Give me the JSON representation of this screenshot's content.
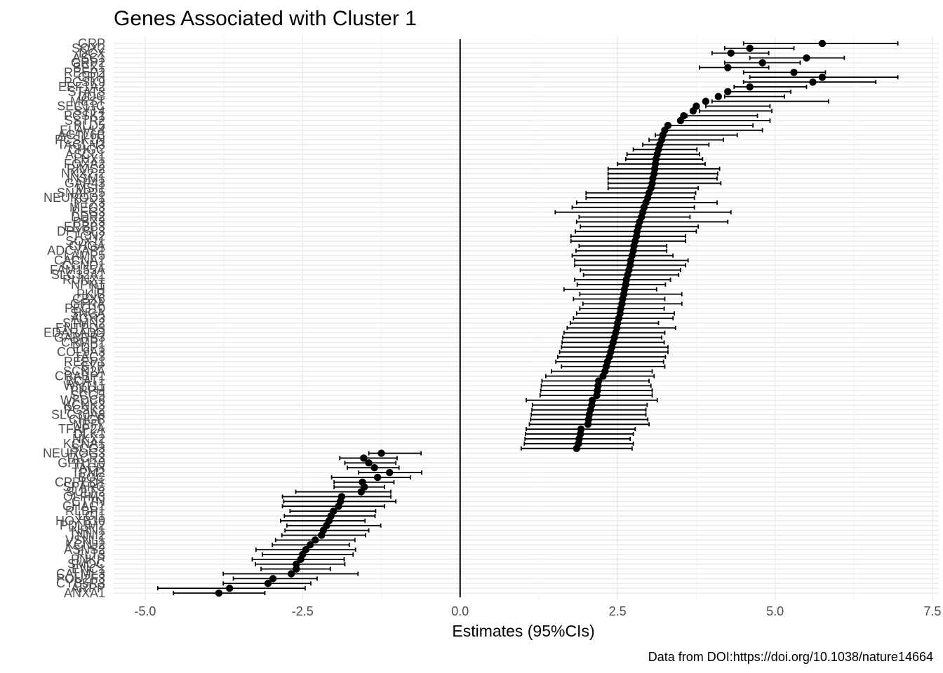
{
  "chart_data": {
    "type": "scatter",
    "title": "Genes Associated with Cluster 1",
    "xlabel": "Estimates (95%CIs)",
    "ylabel": "",
    "caption": "Data from DOI:https://doi.org/10.1038/nature14664",
    "xlim": [
      -5.5,
      7.6
    ],
    "x_ticks": [
      -5.0,
      -2.5,
      0.0,
      2.5,
      5.0,
      7.5
    ],
    "x_tick_labels": [
      "-5.0",
      "-2.5",
      "0.0",
      "2.5",
      "5.0",
      "7.5"
    ],
    "reference_line_x": 0,
    "grid": true,
    "categories": [
      "ANXA1",
      "ARPP",
      "CYB5R3",
      "POU2F3",
      "CALML3",
      "ENC1",
      "SMOC",
      "PNKP",
      "FLT3",
      "ASNS2",
      "KCNJ2",
      "VSNL1",
      "TNNI2",
      "NRN1",
      "PDLIM2",
      "HOXB10",
      "LGI1",
      "RLBP1",
      "CHAC1",
      "CTTN",
      "OLFM3",
      "SULF2",
      "SPARC",
      "CPPED1",
      "BOC",
      "TPM2",
      "TACR",
      "GPR110",
      "TACR3",
      "NEUROG3",
      "SCG3",
      "KCNA1",
      "NKX2",
      "DLK1",
      "TFAP2A",
      "NEFL",
      "CHGB",
      "SLC30A8",
      "PCSK2",
      "KCNK3",
      "WFDC6",
      "SCG5",
      "PRPH",
      "WNT11",
      "BCAT1",
      "CRABP1",
      "SCN2A",
      "SYP",
      "REEP1",
      "TAC3",
      "COL9A3",
      "PDP1",
      "CRMP1",
      "GABRB3",
      "EDARADD",
      "ENTPD3",
      "STMN2",
      "AGR3",
      "SNCA",
      "PEG10",
      "GFRA",
      "CBX6",
      "PKIB",
      "TH",
      "NPNT",
      "RUNX1",
      "SLC32A1",
      "FAM155A",
      "CCND1",
      "CACNA1",
      "LAMP5",
      "ADCYAP1",
      "CHGA",
      "SOX11",
      "TCN2",
      "DPYSL3",
      "ERBB3",
      "PBX3",
      "DDR2",
      "PEG3",
      "MEG3",
      "PTX3",
      "NEUROD1",
      "SNAP25",
      "MSI1",
      "GAP43",
      "INSM1",
      "NKX2-2",
      "RIMS2",
      "FOXA2",
      "LHX1",
      "ASCL1",
      "CHGC",
      "TAGLN3",
      "PCSK1N",
      "ACTL6B",
      "ELAVL4",
      "PLD5",
      "SSTR2",
      "PCSK1",
      "SYT4",
      "SEC11C",
      "MEST",
      "DDC",
      "STAT3",
      "EEF1A2",
      "PCSK9",
      "CRH",
      "REEP2",
      "BEX1",
      "GRP2",
      "ASC1",
      "DCX",
      "SOX2",
      "GRP"
    ],
    "series": [
      {
        "estimates": [
          -3.83,
          -3.66,
          -3.05,
          -2.97,
          -2.68,
          -2.6,
          -2.6,
          -2.53,
          -2.5,
          -2.45,
          -2.38,
          -2.3,
          -2.2,
          -2.17,
          -2.12,
          -2.08,
          -2.05,
          -2.01,
          -1.93,
          -1.9,
          -1.88,
          -1.57,
          -1.52,
          -1.55,
          -1.31,
          -1.12,
          -1.36,
          -1.45,
          -1.53,
          -1.25,
          1.85,
          1.88,
          1.89,
          1.91,
          1.92,
          2.03,
          2.04,
          2.05,
          2.07,
          2.09,
          2.1,
          2.17,
          2.18,
          2.19,
          2.2,
          2.27,
          2.3,
          2.32,
          2.34,
          2.37,
          2.39,
          2.41,
          2.43,
          2.45,
          2.47,
          2.49,
          2.5,
          2.52,
          2.54,
          2.55,
          2.57,
          2.58,
          2.6,
          2.61,
          2.63,
          2.64,
          2.66,
          2.68,
          2.7,
          2.71,
          2.73,
          2.75,
          2.76,
          2.78,
          2.8,
          2.81,
          2.83,
          2.85,
          2.88,
          2.9,
          2.92,
          2.95,
          2.98,
          3.0,
          3.03,
          3.05,
          3.06,
          3.08,
          3.09,
          3.1,
          3.11,
          3.13,
          3.15,
          3.17,
          3.2,
          3.22,
          3.25,
          3.3,
          3.5,
          3.55,
          3.7,
          3.75,
          3.9,
          4.1,
          4.25,
          4.6,
          5.6,
          5.75,
          5.3,
          4.25,
          4.8,
          5.5,
          4.3,
          4.6,
          5.75
        ],
        "ci_low": [
          -4.55,
          -4.8,
          -3.76,
          -3.6,
          -3.76,
          -3.16,
          -3.25,
          -3.3,
          -3.14,
          -3.24,
          -2.98,
          -2.93,
          -2.83,
          -2.78,
          -2.75,
          -2.85,
          -2.79,
          -2.7,
          -2.82,
          -2.8,
          -2.82,
          -2.61,
          -2.0,
          -2.0,
          -2.04,
          -1.61,
          -1.79,
          -1.83,
          -1.91,
          -1.45,
          0.97,
          1.02,
          1.03,
          1.04,
          1.05,
          1.1,
          1.12,
          1.13,
          1.14,
          1.15,
          1.05,
          1.27,
          1.28,
          1.29,
          1.3,
          1.36,
          1.45,
          1.61,
          1.52,
          1.55,
          1.58,
          1.61,
          1.62,
          1.63,
          1.65,
          1.7,
          1.75,
          1.8,
          1.85,
          1.9,
          1.95,
          1.8,
          1.9,
          1.65,
          1.86,
          1.82,
          1.96,
          1.91,
          1.82,
          1.82,
          1.78,
          1.84,
          1.89,
          1.76,
          1.76,
          1.83,
          1.91,
          1.85,
          1.89,
          1.51,
          1.78,
          1.85,
          2.0,
          2.0,
          2.35,
          2.35,
          2.35,
          2.35,
          2.35,
          2.5,
          2.63,
          2.65,
          2.75,
          2.9,
          3.0,
          3.1,
          3.22,
          3.3,
          3.51,
          3.6,
          3.8,
          3.9,
          4.0,
          4.2,
          4.25,
          4.35,
          4.5,
          4.6,
          4.5,
          3.8,
          4.2,
          4.6,
          4.0,
          4.2,
          4.5
        ],
        "ci_high": [
          -3.1,
          -2.46,
          -2.37,
          -2.27,
          -1.62,
          -2.06,
          -1.83,
          -1.84,
          -1.7,
          -1.66,
          -1.76,
          -1.67,
          -1.5,
          -1.45,
          -1.26,
          -1.51,
          -1.35,
          -1.34,
          -1.2,
          -1.02,
          -1.1,
          -1.1,
          -1.2,
          -1.05,
          -0.79,
          -0.61,
          -0.97,
          -1.02,
          -1.0,
          -0.62,
          2.73,
          2.75,
          2.7,
          2.75,
          2.78,
          3.0,
          2.98,
          2.95,
          2.95,
          2.97,
          3.13,
          3.05,
          3.05,
          3.03,
          3.0,
          3.08,
          3.05,
          3.25,
          3.23,
          3.26,
          3.3,
          3.3,
          3.24,
          3.2,
          3.25,
          3.42,
          3.15,
          3.38,
          3.4,
          3.24,
          3.52,
          3.25,
          3.52,
          3.12,
          3.26,
          3.34,
          3.47,
          3.5,
          3.58,
          3.62,
          3.38,
          3.28,
          3.28,
          3.58,
          3.58,
          3.75,
          3.78,
          4.25,
          3.65,
          4.3,
          3.72,
          4.08,
          3.72,
          3.74,
          3.78,
          4.14,
          4.08,
          4.09,
          4.12,
          3.89,
          3.85,
          3.8,
          3.76,
          3.95,
          4.18,
          4.4,
          4.8,
          4.65,
          4.92,
          4.72,
          4.95,
          4.92,
          5.85,
          5.15,
          5.25,
          5.5,
          6.6,
          6.95,
          5.8,
          4.9,
          5.4,
          6.1,
          4.9,
          5.3,
          6.95
        ]
      }
    ]
  }
}
